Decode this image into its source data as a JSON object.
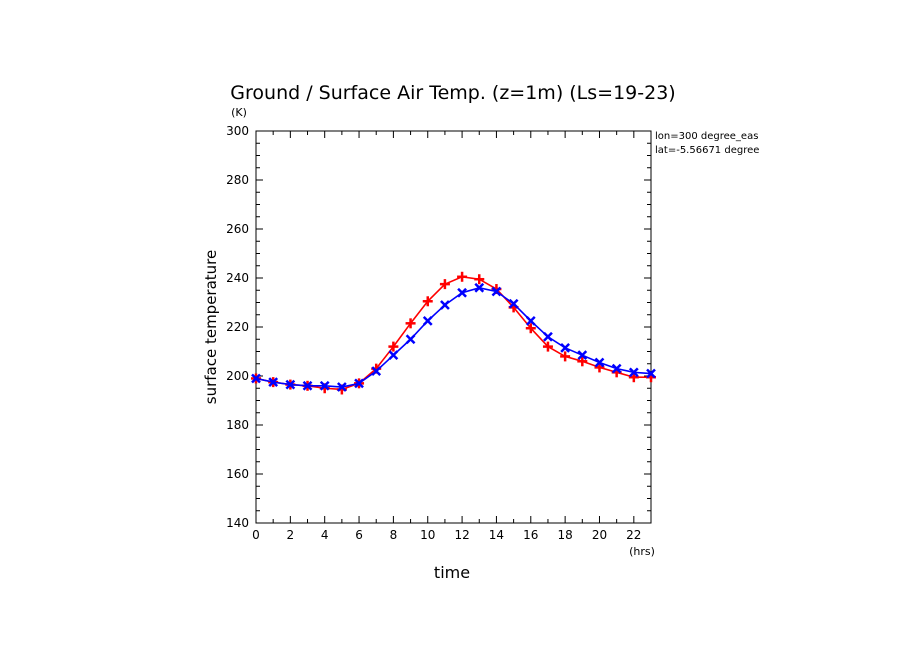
{
  "chart_data": {
    "type": "line",
    "title": "Ground / Surface Air Temp. (z=1m) (Ls=19-23)",
    "xlabel": "time",
    "ylabel": "surface temperature",
    "x_unit": "(hrs)",
    "y_unit": "(K)",
    "xlim": [
      0,
      23
    ],
    "ylim": [
      140,
      300
    ],
    "x_ticks": [
      "0",
      "2",
      "4",
      "6",
      "8",
      "10",
      "12",
      "14",
      "16",
      "18",
      "20",
      "22"
    ],
    "y_ticks": [
      "140",
      "160",
      "180",
      "200",
      "220",
      "240",
      "260",
      "280",
      "300"
    ],
    "annotations": [
      "lon=300 degree_eas",
      "lat=-5.56671 degree"
    ],
    "grid": false,
    "x": [
      0,
      1,
      2,
      3,
      4,
      5,
      6,
      7,
      8,
      9,
      10,
      11,
      12,
      13,
      14,
      15,
      16,
      17,
      18,
      19,
      20,
      21,
      22,
      23
    ],
    "series": [
      {
        "color": "#ff0000",
        "marker": "plus",
        "values": [
          199,
          197.5,
          196.5,
          196,
          195,
          194.5,
          197,
          203,
          212,
          221.5,
          230.5,
          237.5,
          240.5,
          239.5,
          235.5,
          228,
          219.5,
          212,
          208,
          206,
          203.5,
          201.5,
          199.5,
          199.5
        ]
      },
      {
        "color": "#0000ff",
        "marker": "x",
        "values": [
          199,
          197.5,
          196.5,
          196,
          196,
          195.5,
          197,
          202,
          208.5,
          215,
          222.5,
          229,
          234,
          236,
          234.5,
          229.5,
          222.5,
          216,
          211.5,
          208.5,
          205.5,
          203,
          201.5,
          201
        ]
      }
    ]
  }
}
